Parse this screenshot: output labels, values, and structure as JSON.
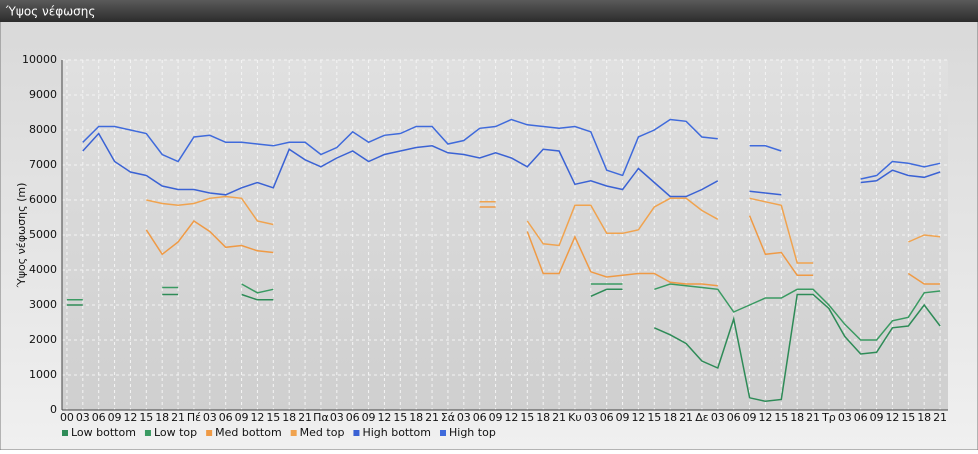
{
  "chart_data": {
    "type": "line",
    "title": "Ύψος νέφωσης",
    "y_label": "Ύψος νέφωσης (m)",
    "categories": [
      "00",
      "03",
      "06",
      "09",
      "12",
      "15",
      "18",
      "21",
      "Πέ",
      "03",
      "06",
      "09",
      "12",
      "15",
      "18",
      "21",
      "Πα",
      "03",
      "06",
      "09",
      "12",
      "15",
      "18",
      "21",
      "Σά",
      "03",
      "06",
      "09",
      "12",
      "15",
      "18",
      "21",
      "Κυ",
      "03",
      "06",
      "09",
      "12",
      "15",
      "18",
      "21",
      "Δε",
      "03",
      "06",
      "09",
      "12",
      "15",
      "18",
      "21",
      "Τρ",
      "03",
      "06",
      "09",
      "12",
      "15",
      "18",
      "21"
    ],
    "ylim": [
      0,
      10000
    ],
    "yticks": [
      0,
      1000,
      2000,
      3000,
      4000,
      5000,
      6000,
      7000,
      8000,
      9000,
      10000
    ],
    "grid": true,
    "legend": "bottom",
    "series": [
      {
        "name": "Low bottom",
        "color": "#2e8b57",
        "values": [
          3000,
          3000,
          null,
          null,
          null,
          null,
          3300,
          3300,
          null,
          null,
          null,
          3300,
          3150,
          3150,
          null,
          null,
          null,
          null,
          null,
          null,
          null,
          null,
          null,
          null,
          null,
          null,
          null,
          null,
          null,
          null,
          null,
          null,
          null,
          3250,
          3450,
          3450,
          null,
          2350,
          2150,
          1900,
          1400,
          1200,
          2600,
          350,
          250,
          300,
          3300,
          3300,
          2900,
          2100,
          1600,
          1650,
          2350,
          2400,
          3000,
          2400
        ]
      },
      {
        "name": "Low top",
        "color": "#3a9a62",
        "values": [
          3150,
          3150,
          null,
          null,
          null,
          null,
          3500,
          3500,
          null,
          null,
          null,
          3600,
          3350,
          3450,
          null,
          null,
          null,
          null,
          null,
          null,
          null,
          null,
          null,
          null,
          null,
          null,
          null,
          null,
          null,
          null,
          null,
          null,
          null,
          3600,
          3600,
          3600,
          null,
          3450,
          3600,
          3550,
          3500,
          3450,
          2800,
          3000,
          3200,
          3200,
          3450,
          3450,
          3000,
          2450,
          2000,
          2000,
          2550,
          2650,
          3350,
          3400
        ]
      },
      {
        "name": "Med bottom",
        "color": "#ef9a45",
        "values": [
          null,
          null,
          null,
          null,
          null,
          5150,
          4450,
          4800,
          5400,
          5100,
          4650,
          4700,
          4550,
          4500,
          null,
          null,
          null,
          null,
          null,
          null,
          null,
          null,
          null,
          null,
          null,
          null,
          5800,
          5800,
          null,
          5100,
          3900,
          3900,
          4950,
          3950,
          3800,
          3850,
          3900,
          3900,
          3650,
          3600,
          3600,
          3550,
          null,
          5550,
          4450,
          4500,
          3850,
          3850,
          null,
          null,
          null,
          null,
          null,
          3900,
          3600,
          3600
        ]
      },
      {
        "name": "Med top",
        "color": "#f0a34f",
        "values": [
          null,
          null,
          null,
          null,
          null,
          6000,
          5900,
          5850,
          5900,
          6050,
          6100,
          6050,
          5400,
          5300,
          null,
          null,
          null,
          null,
          null,
          null,
          null,
          null,
          null,
          null,
          null,
          null,
          5950,
          5950,
          null,
          5400,
          4750,
          4700,
          5850,
          5850,
          5050,
          5050,
          5150,
          5800,
          6050,
          6050,
          5700,
          5450,
          null,
          6050,
          5950,
          5850,
          4200,
          4200,
          null,
          null,
          null,
          null,
          null,
          4800,
          5000,
          4950
        ]
      },
      {
        "name": "High bottom",
        "color": "#3a62d4",
        "values": [
          null,
          7400,
          7900,
          7100,
          6800,
          6700,
          6400,
          6300,
          6300,
          6200,
          6150,
          6350,
          6500,
          6350,
          7450,
          7150,
          6950,
          7200,
          7400,
          7100,
          7300,
          7400,
          7500,
          7550,
          7350,
          7300,
          7200,
          7350,
          7200,
          6950,
          7450,
          7400,
          6450,
          6550,
          6400,
          6300,
          6900,
          6500,
          6100,
          6100,
          6300,
          6550,
          null,
          6250,
          6200,
          6150,
          null,
          null,
          null,
          null,
          6500,
          6550,
          6850,
          6700,
          6650,
          6800
        ]
      },
      {
        "name": "High top",
        "color": "#3f6adb",
        "values": [
          null,
          7650,
          8100,
          8100,
          8000,
          7900,
          7300,
          7100,
          7800,
          7850,
          7650,
          7650,
          7600,
          7550,
          7650,
          7650,
          7300,
          7500,
          7950,
          7650,
          7850,
          7900,
          8100,
          8100,
          7600,
          7700,
          8050,
          8100,
          8300,
          8150,
          8100,
          8050,
          8100,
          7950,
          6850,
          6700,
          7800,
          8000,
          8300,
          8250,
          7800,
          7750,
          null,
          7550,
          7550,
          7400,
          null,
          null,
          null,
          null,
          6600,
          6700,
          7100,
          7050,
          6950,
          7050
        ]
      }
    ]
  }
}
